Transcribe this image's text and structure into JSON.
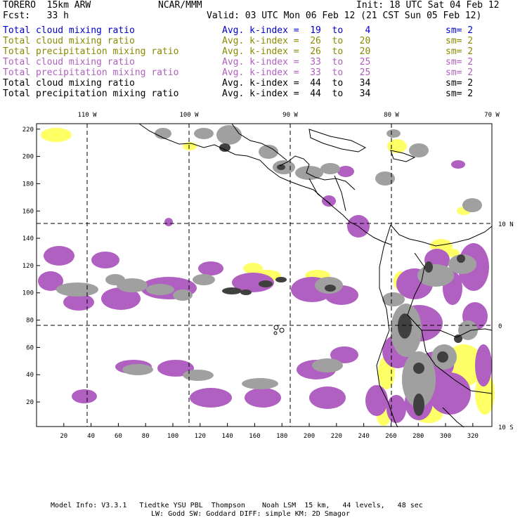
{
  "header": {
    "model": "TORERO  15km ARW",
    "center": "NCAR/MMM",
    "init": "Init: 18 UTC Sat 04 Feb 12",
    "fcst": "Fcst:   33 h",
    "valid": "Valid: 03 UTC Mon 06 Feb 12 (21 CST Sun 05 Feb 12)"
  },
  "legend": [
    {
      "field": "Total cloud mixing ratio",
      "kindex": "Avg. k-index =  19  to    4",
      "sm": "sm= 2",
      "color": "#0000cc"
    },
    {
      "field": "Total cloud mixing ratio",
      "kindex": "Avg. k-index =  26  to   20",
      "sm": "sm= 2",
      "color": "#8a8a00"
    },
    {
      "field": "Total precipitation mixing ratio",
      "kindex": "Avg. k-index =  26  to   20",
      "sm": "sm= 2",
      "color": "#8a8a00"
    },
    {
      "field": "Total cloud mixing ratio",
      "kindex": "Avg. k-index =  33  to   25",
      "sm": "sm= 2",
      "color": "#b060c0"
    },
    {
      "field": "Total precipitation mixing ratio",
      "kindex": "Avg. k-index =  33  to   25",
      "sm": "sm= 2",
      "color": "#b060c0"
    },
    {
      "field": "Total cloud mixing ratio",
      "kindex": "Avg. k-index =  44  to   34",
      "sm": "sm= 2",
      "color": "#000000"
    },
    {
      "field": "Total precipitation mixing ratio",
      "kindex": "Avg. k-index =  44  to   34",
      "sm": "sm= 2",
      "color": "#000000"
    }
  ],
  "map": {
    "lon_labels": [
      "110 W",
      "100 W",
      "90 W",
      "80 W",
      "70 W"
    ],
    "lat_labels": [
      "10 N",
      "0",
      "10 S"
    ],
    "x_ticks": [
      "20",
      "40",
      "60",
      "80",
      "100",
      "120",
      "140",
      "160",
      "180",
      "200",
      "220",
      "240",
      "260",
      "280",
      "300",
      "320"
    ],
    "y_ticks": [
      "220",
      "200",
      "180",
      "160",
      "140",
      "120",
      "100",
      "80",
      "60",
      "40",
      "20"
    ],
    "colors": {
      "yellow": "#ffff66",
      "purple": "#b060c0",
      "gray": "#a0a0a0",
      "dark": "#404040"
    }
  },
  "footer": {
    "line1": "Model Info: V3.3.1   Tiedtke YSU PBL  Thompson    Noah LSM  15 km,   44 levels,   48 sec",
    "line2": "LW: Godd SW: Goddard DIFF: simple KM: 2D Smagor"
  }
}
